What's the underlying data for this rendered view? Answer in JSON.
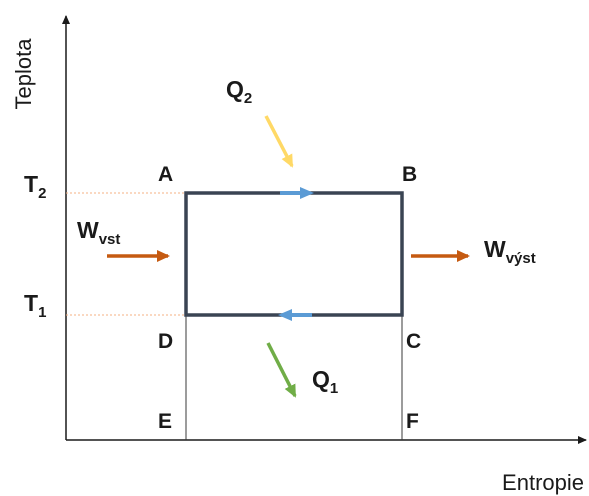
{
  "axes": {
    "y_label": "Teplota",
    "x_label": "Entropie"
  },
  "temperatures": {
    "upper": {
      "main": "T",
      "sub": "2"
    },
    "lower": {
      "main": "T",
      "sub": "1"
    }
  },
  "points": {
    "a": "A",
    "b": "B",
    "c": "C",
    "d": "D",
    "e": "E",
    "f": "F"
  },
  "heat": {
    "in": {
      "main": "Q",
      "sub": "2"
    },
    "out": {
      "main": "Q",
      "sub": "1"
    }
  },
  "work": {
    "in": {
      "main": "W",
      "sub": "vst"
    },
    "out": {
      "main": "W",
      "sub": "výst"
    }
  },
  "colors": {
    "axis": "#1a1a1a",
    "cycle": "#3a4453",
    "flow_arrow": "#5b9bd5",
    "work_arrow": "#c55a11",
    "heat_in_arrow": "#ffd966",
    "heat_out_arrow": "#70ad47",
    "guide_line": "#f4b183"
  }
}
